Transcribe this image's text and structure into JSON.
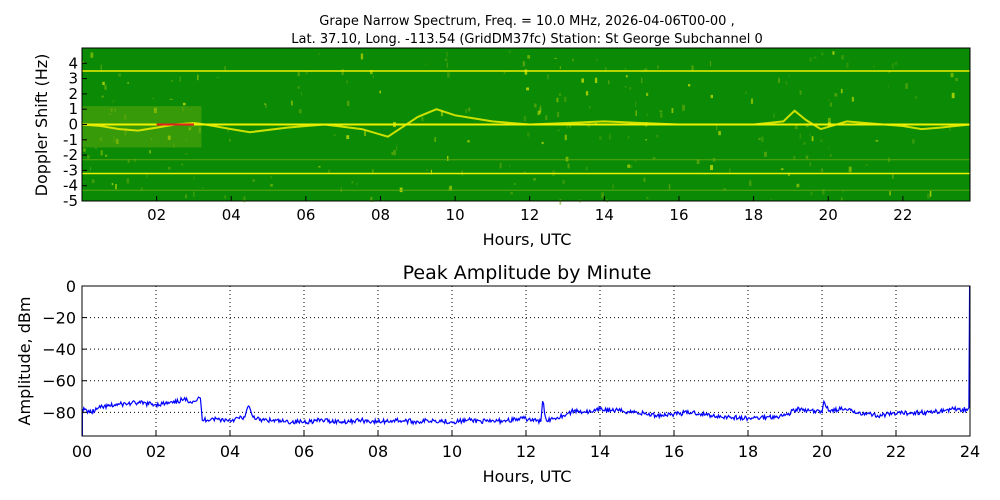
{
  "chart_data": [
    {
      "type": "heatmap",
      "title_line1": "Grape Narrow Spectrum, Freq. = 10.0 MHz, 2026-04-06T00-00 ,",
      "title_line2": "Lat.  37.10, Long. -113.54 (GridDM37fc) Station: St George Subchannel 0",
      "xlabel": "Hours, UTC",
      "ylabel": "Doppler Shift (Hz)",
      "xlim": [
        0,
        23.8
      ],
      "ylim": [
        -5,
        5
      ],
      "x_ticks": [
        2,
        4,
        6,
        8,
        10,
        12,
        14,
        16,
        18,
        20,
        22
      ],
      "x_tick_labels": [
        "02",
        "04",
        "06",
        "08",
        "10",
        "12",
        "14",
        "16",
        "18",
        "20",
        "22"
      ],
      "y_ticks": [
        4,
        3,
        2,
        1,
        0,
        -1,
        -2,
        -3,
        -4,
        -5
      ],
      "y_tick_labels": [
        "4",
        "3",
        "2",
        "1",
        "0",
        "-1",
        "-2",
        "-3",
        "-4",
        "-5"
      ],
      "colors": {
        "background": "#0a8a05",
        "mid": "#6fae10",
        "high": "#f0f000",
        "peak": "#e8201a"
      },
      "steady_lines_hz": [
        3.5,
        0,
        -3.2
      ],
      "faint_lines_hz": [
        -2.3,
        -4.3
      ],
      "doppler_trace": {
        "hours": [
          0,
          0.5,
          1.0,
          1.5,
          2.0,
          2.5,
          3.0,
          3.3,
          4.0,
          4.5,
          5.5,
          6.5,
          7.5,
          8.2,
          9.0,
          9.5,
          10.0,
          11.0,
          12.0,
          13.0,
          14.0,
          15.0,
          16.0,
          17.0,
          18.0,
          18.8,
          19.1,
          19.4,
          19.8,
          20.5,
          21.0,
          22.0,
          22.5,
          23.0,
          23.8
        ],
        "hz": [
          0,
          -0.1,
          -0.3,
          -0.4,
          -0.2,
          0,
          0.1,
          0,
          -0.3,
          -0.5,
          -0.2,
          0,
          -0.3,
          -0.8,
          0.5,
          1.0,
          0.6,
          0.2,
          0,
          0.1,
          0.2,
          0.1,
          0,
          0,
          0,
          0.2,
          0.9,
          0.3,
          -0.3,
          0.2,
          0.1,
          -0.1,
          -0.3,
          -0.2,
          0
        ]
      }
    },
    {
      "type": "line",
      "title": "Peak Amplitude by Minute",
      "xlabel": "Hours, UTC",
      "ylabel": "Amplitude, dBm",
      "xlim": [
        0,
        24
      ],
      "ylim": [
        -95,
        0
      ],
      "grid": true,
      "x_ticks": [
        0,
        2,
        4,
        6,
        8,
        10,
        12,
        14,
        16,
        18,
        20,
        22,
        24
      ],
      "x_tick_labels": [
        "00",
        "02",
        "04",
        "06",
        "08",
        "10",
        "12",
        "14",
        "16",
        "18",
        "20",
        "22",
        "24"
      ],
      "y_ticks": [
        0,
        -20,
        -40,
        -60,
        -80
      ],
      "y_tick_labels": [
        "0",
        "−20",
        "−40",
        "−60",
        "−80"
      ],
      "line_color": "#0000ff",
      "x": [
        0,
        0.25,
        0.5,
        0.75,
        1.0,
        1.5,
        2.0,
        2.5,
        2.7,
        3.0,
        3.2,
        3.25,
        3.5,
        4.0,
        4.4,
        4.5,
        4.6,
        4.8,
        5.0,
        5.5,
        6.0,
        6.5,
        7.0,
        7.5,
        8.0,
        8.5,
        9.0,
        9.5,
        10.0,
        10.5,
        11.0,
        11.5,
        12.0,
        12.4,
        12.45,
        12.55,
        13.0,
        13.3,
        13.8,
        14.0,
        14.5,
        15.0,
        15.5,
        16.0,
        16.5,
        17.0,
        17.5,
        18.0,
        18.5,
        19.0,
        19.3,
        19.6,
        20.0,
        20.05,
        20.2,
        20.5,
        21.0,
        21.5,
        22.0,
        22.5,
        23.0,
        23.5,
        23.9,
        23.97
      ],
      "y": [
        -78,
        -80,
        -77,
        -76,
        -75,
        -74,
        -75,
        -74,
        -72,
        -73,
        -71,
        -85,
        -84,
        -85,
        -83,
        -76,
        -82,
        -85,
        -85,
        -86,
        -86,
        -85,
        -86,
        -85,
        -86,
        -85,
        -86,
        -85,
        -86,
        -85,
        -86,
        -85,
        -84,
        -86,
        -73,
        -85,
        -82,
        -79,
        -80,
        -78,
        -79,
        -80,
        -82,
        -81,
        -80,
        -82,
        -83,
        -84,
        -83,
        -82,
        -78,
        -79,
        -80,
        -73,
        -79,
        -78,
        -80,
        -82,
        -81,
        -80,
        -80,
        -78,
        -78,
        -77
      ]
    }
  ]
}
